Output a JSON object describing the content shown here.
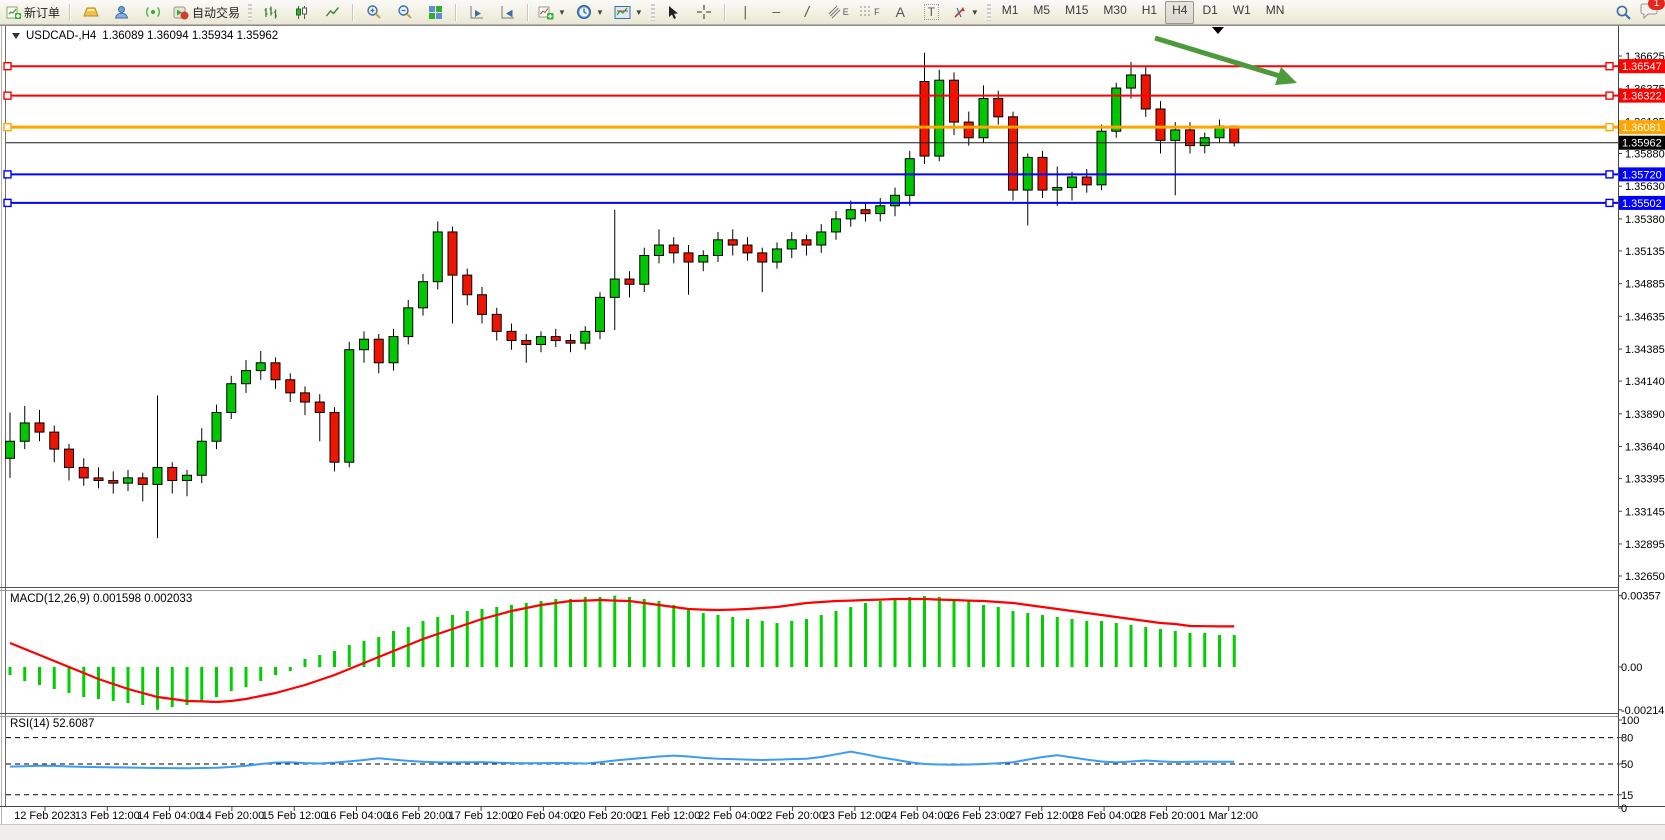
{
  "toolbar": {
    "new_order_label": "新订单",
    "auto_trading_label": "自动交易",
    "timeframes": [
      "M1",
      "M5",
      "M15",
      "M30",
      "H1",
      "H4",
      "D1",
      "W1",
      "MN"
    ],
    "active_timeframe": "H4",
    "notification_badge": "1",
    "tool_letters": {
      "text_tool": "A",
      "label_tool": "T",
      "channel_tool": "E",
      "fibo_tool": "F"
    },
    "line_glyphs": {
      "vertical": "|",
      "horizontal": "—",
      "trend": "/"
    }
  },
  "chart": {
    "symbol_period": "USDCAD-,H4",
    "ohlc_text": "1.36089 1.36094 1.35934 1.35962"
  },
  "chart_data": {
    "type": "candlestick",
    "symbol": "USDCAD",
    "timeframe": "H4",
    "title": "USDCAD-,H4 1.36089 1.36094 1.35934 1.35962",
    "x_labels": [
      "12 Feb 2023",
      "13 Feb 12:00",
      "14 Feb 04:00",
      "14 Feb 20:00",
      "15 Feb 12:00",
      "16 Feb 04:00",
      "16 Feb 20:00",
      "17 Feb 12:00",
      "20 Feb 04:00",
      "20 Feb 20:00",
      "21 Feb 12:00",
      "22 Feb 04:00",
      "22 Feb 20:00",
      "23 Feb 12:00",
      "24 Feb 04:00",
      "26 Feb 23:00",
      "27 Feb 12:00",
      "28 Feb 04:00",
      "28 Feb 20:00",
      "1 Mar 12:00"
    ],
    "y_ticks": [
      "1.36625",
      "1.36375",
      "1.36125",
      "1.35880",
      "1.35630",
      "1.35380",
      "1.35135",
      "1.34885",
      "1.34635",
      "1.34385",
      "1.34140",
      "1.33890",
      "1.33640",
      "1.33395",
      "1.33145",
      "1.32895",
      "1.32650"
    ],
    "ylim": [
      1.3265,
      1.36625
    ],
    "ohlc": [
      [
        1.3355,
        1.339,
        1.334,
        1.3368
      ],
      [
        1.3368,
        1.3395,
        1.3362,
        1.3382
      ],
      [
        1.3382,
        1.3392,
        1.3368,
        1.3375
      ],
      [
        1.3375,
        1.338,
        1.3352,
        1.3362
      ],
      [
        1.3362,
        1.3366,
        1.3338,
        1.3348
      ],
      [
        1.3348,
        1.3355,
        1.3334,
        1.334
      ],
      [
        1.334,
        1.3348,
        1.3332,
        1.3338
      ],
      [
        1.3338,
        1.3345,
        1.3328,
        1.3336
      ],
      [
        1.3336,
        1.3346,
        1.333,
        1.334
      ],
      [
        1.334,
        1.3344,
        1.3322,
        1.3335
      ],
      [
        1.3335,
        1.3403,
        1.3294,
        1.3348
      ],
      [
        1.3348,
        1.3352,
        1.3328,
        1.3338
      ],
      [
        1.3338,
        1.3346,
        1.3326,
        1.3342
      ],
      [
        1.3342,
        1.3378,
        1.3336,
        1.3368
      ],
      [
        1.3368,
        1.3396,
        1.3362,
        1.339
      ],
      [
        1.339,
        1.3418,
        1.3385,
        1.3412
      ],
      [
        1.3412,
        1.343,
        1.3405,
        1.3422
      ],
      [
        1.3422,
        1.3437,
        1.3415,
        1.3428
      ],
      [
        1.3428,
        1.3432,
        1.3408,
        1.3415
      ],
      [
        1.3415,
        1.342,
        1.3398,
        1.3405
      ],
      [
        1.3405,
        1.341,
        1.3388,
        1.3398
      ],
      [
        1.3398,
        1.3404,
        1.3368,
        1.339
      ],
      [
        1.339,
        1.3394,
        1.3345,
        1.3352
      ],
      [
        1.3352,
        1.3444,
        1.3348,
        1.3438
      ],
      [
        1.3438,
        1.3452,
        1.3428,
        1.3446
      ],
      [
        1.3446,
        1.345,
        1.342,
        1.3428
      ],
      [
        1.3428,
        1.3454,
        1.3422,
        1.3448
      ],
      [
        1.3448,
        1.3476,
        1.3442,
        1.347
      ],
      [
        1.347,
        1.3496,
        1.3464,
        1.349
      ],
      [
        1.349,
        1.3536,
        1.3484,
        1.3528
      ],
      [
        1.3528,
        1.3532,
        1.3458,
        1.3495
      ],
      [
        1.3495,
        1.35,
        1.3472,
        1.348
      ],
      [
        1.348,
        1.3486,
        1.3458,
        1.3465
      ],
      [
        1.3465,
        1.347,
        1.3445,
        1.3452
      ],
      [
        1.3452,
        1.3458,
        1.3438,
        1.3445
      ],
      [
        1.3445,
        1.345,
        1.3428,
        1.3442
      ],
      [
        1.3442,
        1.3452,
        1.3436,
        1.3448
      ],
      [
        1.3448,
        1.3454,
        1.344,
        1.3445
      ],
      [
        1.3445,
        1.345,
        1.3436,
        1.3443
      ],
      [
        1.3443,
        1.3456,
        1.3438,
        1.3452
      ],
      [
        1.3452,
        1.3482,
        1.3446,
        1.3478
      ],
      [
        1.3478,
        1.3545,
        1.3453,
        1.3492
      ],
      [
        1.3492,
        1.3498,
        1.3478,
        1.3488
      ],
      [
        1.3488,
        1.3516,
        1.3482,
        1.351
      ],
      [
        1.351,
        1.353,
        1.3504,
        1.3518
      ],
      [
        1.3518,
        1.3524,
        1.3504,
        1.3512
      ],
      [
        1.3512,
        1.3518,
        1.348,
        1.3505
      ],
      [
        1.3505,
        1.3514,
        1.3498,
        1.351
      ],
      [
        1.351,
        1.3528,
        1.3505,
        1.3522
      ],
      [
        1.3522,
        1.353,
        1.351,
        1.3518
      ],
      [
        1.3518,
        1.3524,
        1.3506,
        1.3512
      ],
      [
        1.3512,
        1.3516,
        1.3482,
        1.3505
      ],
      [
        1.3505,
        1.352,
        1.35,
        1.3515
      ],
      [
        1.3515,
        1.3528,
        1.3508,
        1.3522
      ],
      [
        1.3522,
        1.3526,
        1.351,
        1.3518
      ],
      [
        1.3518,
        1.3534,
        1.3512,
        1.3528
      ],
      [
        1.3528,
        1.3544,
        1.3522,
        1.3538
      ],
      [
        1.3538,
        1.3552,
        1.3532,
        1.3545
      ],
      [
        1.3545,
        1.355,
        1.3536,
        1.3542
      ],
      [
        1.3542,
        1.3554,
        1.3536,
        1.3548
      ],
      [
        1.3548,
        1.3562,
        1.354,
        1.3556
      ],
      [
        1.3556,
        1.359,
        1.3548,
        1.3584
      ],
      [
        1.3643,
        1.3665,
        1.358,
        1.3586
      ],
      [
        1.3586,
        1.3652,
        1.3582,
        1.3644
      ],
      [
        1.3644,
        1.365,
        1.3602,
        1.3612
      ],
      [
        1.3612,
        1.362,
        1.3594,
        1.36
      ],
      [
        1.36,
        1.364,
        1.3596,
        1.363
      ],
      [
        1.363,
        1.3636,
        1.361,
        1.3616
      ],
      [
        1.3616,
        1.362,
        1.3552,
        1.356
      ],
      [
        1.356,
        1.3588,
        1.3533,
        1.3585
      ],
      [
        1.3585,
        1.359,
        1.3554,
        1.356
      ],
      [
        1.356,
        1.3578,
        1.3548,
        1.3562
      ],
      [
        1.3562,
        1.3574,
        1.3552,
        1.357
      ],
      [
        1.357,
        1.3576,
        1.3558,
        1.3564
      ],
      [
        1.3564,
        1.361,
        1.356,
        1.3605
      ],
      [
        1.3605,
        1.3642,
        1.36,
        1.3638
      ],
      [
        1.3638,
        1.3658,
        1.363,
        1.3648
      ],
      [
        1.3648,
        1.3654,
        1.3616,
        1.3622
      ],
      [
        1.3622,
        1.3628,
        1.3588,
        1.3598
      ],
      [
        1.3598,
        1.3612,
        1.3556,
        1.3606
      ],
      [
        1.3606,
        1.3612,
        1.3588,
        1.3594
      ],
      [
        1.3594,
        1.3604,
        1.3588,
        1.36
      ],
      [
        1.36,
        1.3614,
        1.3596,
        1.3609
      ],
      [
        1.36089,
        1.36094,
        1.35934,
        1.35962
      ]
    ],
    "hlines": [
      {
        "price": 1.36547,
        "label": "1.36547",
        "color": "#ff0000",
        "width": 2
      },
      {
        "price": 1.36322,
        "label": "1.36322",
        "color": "#ff0000",
        "width": 2
      },
      {
        "price": 1.36081,
        "label": "1.36081",
        "color": "#ffa500",
        "width": 3
      },
      {
        "price": 1.3572,
        "label": "1.35720",
        "color": "#0000ff",
        "width": 2
      },
      {
        "price": 1.35502,
        "label": "1.35502",
        "color": "#0000ff",
        "width": 2
      }
    ],
    "current_price": {
      "value": 1.35962,
      "label": "1.35962",
      "color": "#000000"
    },
    "annotations": [
      {
        "type": "arrow",
        "color": "#4d9a3d",
        "direction": "down-right",
        "note": "drawn trend arrow above last swing high"
      }
    ],
    "indicators": {
      "macd": {
        "label_text": "MACD(12,26,9) 0.001598 0.002033",
        "name": "MACD",
        "params": "12,26,9",
        "value_main": 0.001598,
        "value_signal": 0.002033,
        "y_ticks": [
          {
            "v": 0.00357,
            "label": "0.00357"
          },
          {
            "v": 0,
            "label": "0.00"
          },
          {
            "v": -0.002141,
            "label": "-0.002141"
          }
        ],
        "histogram_color": "#00d000",
        "signal_color": "#ff0000",
        "histogram": [
          -0.0004,
          -0.0007,
          -0.0009,
          -0.0011,
          -0.0013,
          -0.0015,
          -0.0016,
          -0.0017,
          -0.0018,
          -0.0019,
          -0.00214,
          -0.002,
          -0.0019,
          -0.0017,
          -0.0015,
          -0.0012,
          -0.001,
          -0.0007,
          -0.0004,
          -0.0002,
          0.0004,
          0.0006,
          0.0008,
          0.0011,
          0.0013,
          0.0015,
          0.0018,
          0.002,
          0.0023,
          0.0025,
          0.0026,
          0.0028,
          0.0029,
          0.003,
          0.0031,
          0.0032,
          0.0033,
          0.0034,
          0.0034,
          0.0035,
          0.0035,
          0.00357,
          0.0035,
          0.0034,
          0.0033,
          0.0031,
          0.0029,
          0.0027,
          0.0026,
          0.0025,
          0.0024,
          0.0023,
          0.0022,
          0.0023,
          0.0024,
          0.0026,
          0.0028,
          0.003,
          0.0032,
          0.0033,
          0.0034,
          0.0035,
          0.00355,
          0.0035,
          0.0034,
          0.0033,
          0.0031,
          0.003,
          0.0028,
          0.0027,
          0.0026,
          0.0025,
          0.0024,
          0.0023,
          0.0023,
          0.0022,
          0.0021,
          0.002,
          0.0019,
          0.0018,
          0.0017,
          0.0017,
          0.0016,
          0.001598
        ],
        "signal": [
          0.0012,
          0.0009,
          0.0006,
          0.0003,
          0.0,
          -0.0003,
          -0.0006,
          -0.00085,
          -0.0011,
          -0.0013,
          -0.0015,
          -0.0016,
          -0.0017,
          -0.00172,
          -0.00175,
          -0.0017,
          -0.0016,
          -0.00145,
          -0.0013,
          -0.0011,
          -0.0009,
          -0.00065,
          -0.0004,
          -0.0001,
          0.0002,
          0.0005,
          0.0008,
          0.0011,
          0.0014,
          0.00165,
          0.0019,
          0.00215,
          0.0024,
          0.0026,
          0.0028,
          0.00295,
          0.0031,
          0.0032,
          0.0033,
          0.00332,
          0.00335,
          0.00332,
          0.0033,
          0.0032,
          0.0031,
          0.003,
          0.0029,
          0.00287,
          0.00285,
          0.00287,
          0.0029,
          0.00295,
          0.003,
          0.0031,
          0.0032,
          0.00325,
          0.0033,
          0.00332,
          0.00335,
          0.00337,
          0.0034,
          0.0034,
          0.0034,
          0.00337,
          0.00335,
          0.00332,
          0.0033,
          0.00325,
          0.0032,
          0.0031,
          0.003,
          0.0029,
          0.0028,
          0.0027,
          0.0026,
          0.0025,
          0.0024,
          0.0023,
          0.0022,
          0.00215,
          0.00205,
          0.00204,
          0.00203,
          0.002033
        ]
      },
      "rsi": {
        "label_text": "RSI(14) 52.6087",
        "name": "RSI",
        "period": 14,
        "value": 52.6087,
        "y_ticks": [
          {
            "v": 100,
            "label": "100"
          },
          {
            "v": 80,
            "label": "80"
          },
          {
            "v": 50,
            "label": "50"
          },
          {
            "v": 15,
            "label": "15"
          },
          {
            "v": 0,
            "label": "0"
          }
        ],
        "levels": [
          80,
          50,
          15
        ],
        "line_color": "#3c9bf4",
        "series": [
          47,
          47.5,
          48,
          47.8,
          47.2,
          46.8,
          46.5,
          46.2,
          46,
          45.8,
          45.5,
          45.3,
          45.2,
          45.4,
          45.8,
          46.6,
          48,
          50,
          51.5,
          52,
          51,
          50.5,
          51.5,
          53,
          54.5,
          56.5,
          55,
          53.5,
          52.5,
          52,
          51.8,
          52,
          52.2,
          51.5,
          51,
          50.8,
          51,
          51.2,
          51,
          50.5,
          52,
          54,
          55.5,
          57,
          58.5,
          59.5,
          58.5,
          57,
          56,
          55.5,
          55,
          54.5,
          55,
          55.5,
          56,
          58,
          61,
          64,
          61,
          57.5,
          55,
          52,
          50,
          49.5,
          49.2,
          49.5,
          50,
          50.8,
          52,
          55,
          58,
          60,
          57.5,
          55,
          52.8,
          51.8,
          52.8,
          54,
          53,
          52.3,
          52.6,
          52.7,
          52.55,
          52.6087
        ]
      }
    },
    "colors": {
      "bull": "#00c700",
      "bear": "#ed1500",
      "wick": "#000000",
      "background": "#ffffff",
      "axis_text": "#000000",
      "arrow": "#4d9a3d"
    }
  }
}
